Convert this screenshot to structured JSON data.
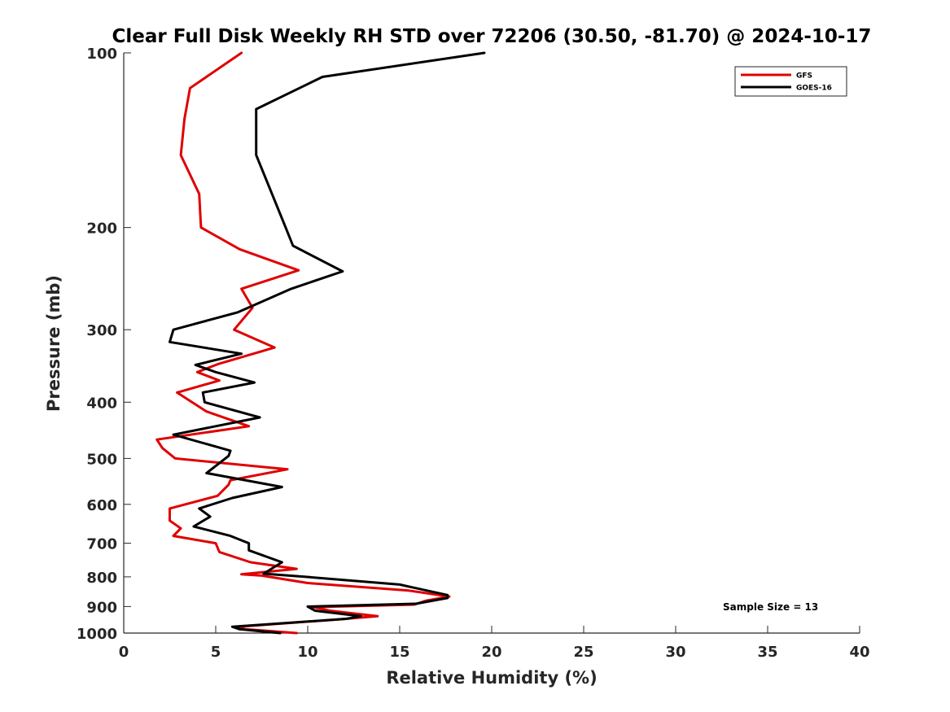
{
  "chart_data": {
    "type": "line",
    "title": "Clear Full Disk Weekly RH STD over 72206 (30.50, -81.70) @ 2024-10-17",
    "xlabel": "Relative Humidity (%)",
    "ylabel": "Pressure (mb)",
    "xlim": [
      0,
      40
    ],
    "ylim": [
      100,
      1000
    ],
    "y_scale": "log",
    "y_reversed": true,
    "xticks": [
      "0",
      "5",
      "10",
      "15",
      "20",
      "25",
      "30",
      "35",
      "40"
    ],
    "yticks": [
      "100",
      "200",
      "300",
      "400",
      "500",
      "600",
      "700",
      "800",
      "900",
      "1000"
    ],
    "grid": false,
    "legend_position": "top-right",
    "annotation": "Sample Size = 13",
    "series": [
      {
        "name": "GFS",
        "color": "#e00000",
        "points": [
          [
            6.4,
            100
          ],
          [
            3.6,
            115
          ],
          [
            3.3,
            130
          ],
          [
            3.1,
            150
          ],
          [
            4.1,
            175
          ],
          [
            4.2,
            200
          ],
          [
            6.3,
            218
          ],
          [
            9.5,
            237
          ],
          [
            6.4,
            255
          ],
          [
            7.0,
            275
          ],
          [
            6.0,
            300
          ],
          [
            8.2,
            322
          ],
          [
            5.1,
            344
          ],
          [
            4.0,
            355
          ],
          [
            5.2,
            367
          ],
          [
            2.9,
            385
          ],
          [
            4.5,
            415
          ],
          [
            6.8,
            440
          ],
          [
            1.8,
            464
          ],
          [
            2.1,
            480
          ],
          [
            2.8,
            500
          ],
          [
            8.9,
            522
          ],
          [
            5.8,
            545
          ],
          [
            5.7,
            555
          ],
          [
            5.1,
            580
          ],
          [
            2.5,
            610
          ],
          [
            2.5,
            640
          ],
          [
            3.1,
            660
          ],
          [
            2.7,
            680
          ],
          [
            5.0,
            700
          ],
          [
            5.2,
            725
          ],
          [
            6.9,
            755
          ],
          [
            9.4,
            775
          ],
          [
            6.4,
            792
          ],
          [
            7.5,
            796
          ],
          [
            10.0,
            820
          ],
          [
            15.5,
            845
          ],
          [
            17.7,
            865
          ],
          [
            16.4,
            880
          ],
          [
            15.8,
            893
          ],
          [
            10.3,
            902
          ],
          [
            11.2,
            915
          ],
          [
            13.8,
            935
          ],
          [
            11.5,
            948
          ],
          [
            6.2,
            975
          ],
          [
            6.6,
            985
          ],
          [
            9.4,
            1000
          ]
        ]
      },
      {
        "name": "GOES-16",
        "color": "#000000",
        "points": [
          [
            19.6,
            100
          ],
          [
            10.8,
            110
          ],
          [
            7.2,
            125
          ],
          [
            7.2,
            150
          ],
          [
            7.9,
            170
          ],
          [
            8.8,
            200
          ],
          [
            9.2,
            215
          ],
          [
            11.9,
            238
          ],
          [
            9.1,
            255
          ],
          [
            6.2,
            280
          ],
          [
            2.7,
            300
          ],
          [
            2.5,
            315
          ],
          [
            6.4,
            330
          ],
          [
            3.9,
            345
          ],
          [
            5.0,
            355
          ],
          [
            7.1,
            370
          ],
          [
            4.3,
            385
          ],
          [
            4.4,
            400
          ],
          [
            7.4,
            425
          ],
          [
            2.7,
            455
          ],
          [
            5.8,
            485
          ],
          [
            5.7,
            495
          ],
          [
            4.5,
            530
          ],
          [
            8.6,
            560
          ],
          [
            5.9,
            585
          ],
          [
            4.1,
            610
          ],
          [
            4.7,
            630
          ],
          [
            3.8,
            655
          ],
          [
            5.8,
            680
          ],
          [
            6.8,
            700
          ],
          [
            6.8,
            720
          ],
          [
            8.6,
            755
          ],
          [
            7.6,
            790
          ],
          [
            9.9,
            800
          ],
          [
            15.0,
            825
          ],
          [
            17.6,
            860
          ],
          [
            17.6,
            870
          ],
          [
            15.9,
            890
          ],
          [
            10.0,
            900
          ],
          [
            10.4,
            915
          ],
          [
            12.9,
            935
          ],
          [
            12.1,
            945
          ],
          [
            5.9,
            975
          ],
          [
            6.3,
            985
          ],
          [
            8.5,
            1000
          ]
        ]
      }
    ]
  }
}
